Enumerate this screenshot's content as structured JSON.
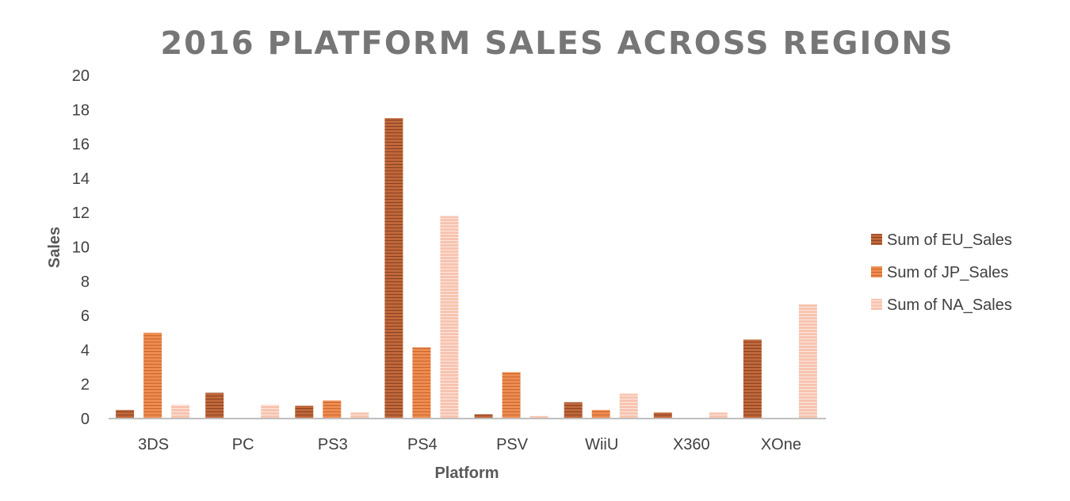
{
  "chart_data": {
    "type": "bar",
    "title": "2016 PLATFORM SALES ACROSS REGIONS",
    "xlabel": "Platform",
    "ylabel": "Sales",
    "ylim": [
      0,
      20
    ],
    "yticks": [
      0,
      2,
      4,
      6,
      8,
      10,
      12,
      14,
      16,
      18,
      20
    ],
    "categories": [
      "3DS",
      "PC",
      "PS3",
      "PS4",
      "PSV",
      "WiiU",
      "X360",
      "XOne"
    ],
    "series": [
      {
        "name": "Sum of EU_Sales",
        "color": "#c0673a",
        "values": [
          0.5,
          1.5,
          0.75,
          17.5,
          0.25,
          0.95,
          0.35,
          4.6
        ]
      },
      {
        "name": "Sum of JP_Sales",
        "color": "#ed8a4e",
        "values": [
          5.0,
          0,
          1.05,
          4.15,
          2.7,
          0.5,
          0,
          0
        ]
      },
      {
        "name": "Sum of NA_Sales",
        "color": "#f5b9a3",
        "values": [
          0.8,
          0.8,
          0.35,
          11.8,
          0.15,
          1.45,
          0.35,
          6.65
        ]
      }
    ],
    "grid": false,
    "legend_position": "right"
  }
}
